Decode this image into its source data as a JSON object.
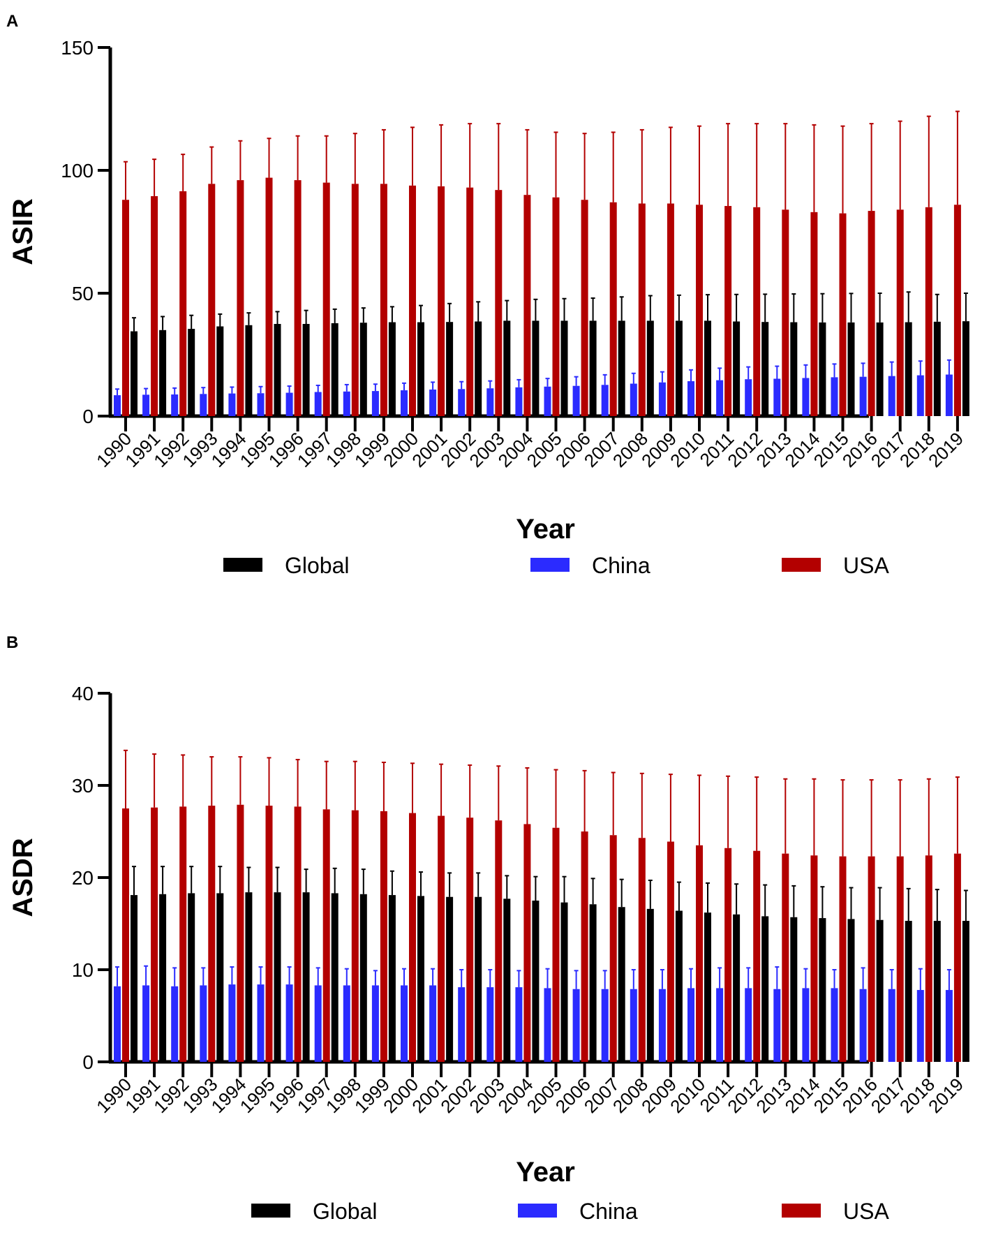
{
  "colors": {
    "Global": "#000000",
    "China": "#2b2bff",
    "USA": "#b30000"
  },
  "chart_data": [
    {
      "type": "bar",
      "panel": "A",
      "ylabel": "ASIR",
      "xlabel": "Year",
      "ylim": [
        0,
        150
      ],
      "yticks": [
        0,
        50,
        100,
        150
      ],
      "categories": [
        "1990",
        "1991",
        "1992",
        "1993",
        "1994",
        "1995",
        "1996",
        "1997",
        "1998",
        "1999",
        "2000",
        "2001",
        "2002",
        "2003",
        "2004",
        "2005",
        "2006",
        "2007",
        "2008",
        "2009",
        "2010",
        "2011",
        "2012",
        "2013",
        "2014",
        "2015",
        "2016",
        "2017",
        "2018",
        "2019"
      ],
      "series": [
        {
          "name": "China",
          "values": [
            8.5,
            8.7,
            8.8,
            9.0,
            9.2,
            9.3,
            9.5,
            9.8,
            10.0,
            10.2,
            10.5,
            10.8,
            11.0,
            11.3,
            11.7,
            12.0,
            12.3,
            12.7,
            13.2,
            13.7,
            14.2,
            14.6,
            15.0,
            15.2,
            15.5,
            15.8,
            16.0,
            16.3,
            16.6,
            16.9
          ],
          "upper": [
            11.0,
            11.2,
            11.4,
            11.6,
            11.8,
            12.0,
            12.2,
            12.5,
            12.8,
            13.0,
            13.4,
            13.8,
            14.0,
            14.3,
            14.8,
            15.3,
            16.0,
            16.8,
            17.4,
            18.0,
            18.8,
            19.5,
            20.0,
            20.3,
            20.8,
            21.2,
            21.5,
            22.0,
            22.4,
            22.8
          ]
        },
        {
          "name": "USA",
          "values": [
            88,
            89.5,
            91.5,
            94.5,
            96,
            97,
            96,
            95,
            94.5,
            94.5,
            93.8,
            93.5,
            93,
            92,
            90,
            89,
            88,
            87,
            86.5,
            86.5,
            86,
            85.5,
            85,
            84,
            83,
            82.5,
            83.5,
            84,
            85,
            86
          ],
          "upper": [
            103.5,
            104.5,
            106.5,
            109.5,
            112,
            113,
            114,
            114,
            115,
            116.5,
            117.5,
            118.5,
            119,
            119,
            116.5,
            115.5,
            115,
            115.5,
            116.5,
            117.5,
            118,
            119,
            119,
            119,
            118.5,
            118,
            119,
            120,
            122,
            124
          ]
        },
        {
          "name": "Global",
          "values": [
            34.5,
            35,
            35.5,
            36.5,
            37,
            37.5,
            37.5,
            37.8,
            38,
            38.2,
            38.2,
            38.3,
            38.5,
            38.8,
            38.8,
            38.8,
            38.8,
            38.8,
            38.8,
            38.8,
            38.8,
            38.5,
            38.3,
            38.2,
            38.1,
            38.1,
            38.1,
            38.2,
            38.4,
            38.6
          ],
          "upper": [
            40,
            40.5,
            41,
            41.5,
            42,
            42.5,
            43,
            43.5,
            44,
            44.5,
            45,
            45.8,
            46.5,
            47,
            47.5,
            47.8,
            48,
            48.5,
            49,
            49.2,
            49.4,
            49.5,
            49.6,
            49.7,
            49.8,
            49.9,
            50,
            50.5,
            49.5,
            50
          ]
        }
      ]
    },
    {
      "type": "bar",
      "panel": "B",
      "ylabel": "ASDR",
      "xlabel": "Year",
      "ylim": [
        0,
        40
      ],
      "yticks": [
        0,
        10,
        20,
        30,
        40
      ],
      "categories": [
        "1990",
        "1991",
        "1992",
        "1993",
        "1994",
        "1995",
        "1996",
        "1997",
        "1998",
        "1999",
        "2000",
        "2001",
        "2002",
        "2003",
        "2004",
        "2005",
        "2006",
        "2007",
        "2008",
        "2009",
        "2010",
        "2011",
        "2012",
        "2013",
        "2014",
        "2015",
        "2016",
        "2017",
        "2018",
        "2019"
      ],
      "series": [
        {
          "name": "China",
          "values": [
            8.2,
            8.3,
            8.2,
            8.3,
            8.4,
            8.4,
            8.4,
            8.3,
            8.3,
            8.3,
            8.3,
            8.3,
            8.1,
            8.1,
            8.1,
            8.0,
            7.9,
            7.9,
            7.9,
            7.9,
            8.0,
            8.0,
            8.0,
            7.9,
            8.0,
            8.0,
            7.9,
            7.9,
            7.8,
            7.8
          ],
          "upper": [
            10.3,
            10.4,
            10.2,
            10.2,
            10.3,
            10.3,
            10.3,
            10.2,
            10.1,
            9.9,
            10.1,
            10.1,
            10.0,
            10.0,
            9.9,
            10.1,
            9.9,
            9.9,
            10.0,
            10.0,
            10.1,
            10.2,
            10.2,
            10.3,
            10.1,
            10.0,
            10.2,
            10.0,
            10.1,
            10.0
          ]
        },
        {
          "name": "USA",
          "values": [
            27.5,
            27.6,
            27.7,
            27.8,
            27.9,
            27.8,
            27.7,
            27.4,
            27.3,
            27.2,
            27.0,
            26.7,
            26.5,
            26.2,
            25.8,
            25.4,
            25.0,
            24.6,
            24.3,
            23.9,
            23.5,
            23.2,
            22.9,
            22.6,
            22.4,
            22.3,
            22.3,
            22.3,
            22.4,
            22.6
          ],
          "upper": [
            33.8,
            33.4,
            33.3,
            33.1,
            33.1,
            33.0,
            32.8,
            32.6,
            32.6,
            32.5,
            32.4,
            32.3,
            32.2,
            32.1,
            31.9,
            31.7,
            31.6,
            31.4,
            31.3,
            31.2,
            31.1,
            31.0,
            30.9,
            30.7,
            30.7,
            30.6,
            30.6,
            30.6,
            30.7,
            30.9
          ]
        },
        {
          "name": "Global",
          "values": [
            18.1,
            18.2,
            18.3,
            18.3,
            18.4,
            18.4,
            18.4,
            18.3,
            18.2,
            18.1,
            18.0,
            17.9,
            17.9,
            17.7,
            17.5,
            17.3,
            17.1,
            16.8,
            16.6,
            16.4,
            16.2,
            16.0,
            15.8,
            15.7,
            15.6,
            15.5,
            15.4,
            15.3,
            15.3,
            15.3
          ],
          "upper": [
            21.2,
            21.2,
            21.2,
            21.2,
            21.1,
            21.1,
            20.9,
            21.0,
            20.9,
            20.7,
            20.6,
            20.5,
            20.5,
            20.2,
            20.1,
            20.1,
            19.9,
            19.8,
            19.7,
            19.5,
            19.4,
            19.3,
            19.2,
            19.1,
            19.0,
            18.9,
            18.9,
            18.8,
            18.7,
            18.6
          ]
        }
      ]
    }
  ],
  "legend": [
    "Global",
    "China",
    "USA"
  ]
}
